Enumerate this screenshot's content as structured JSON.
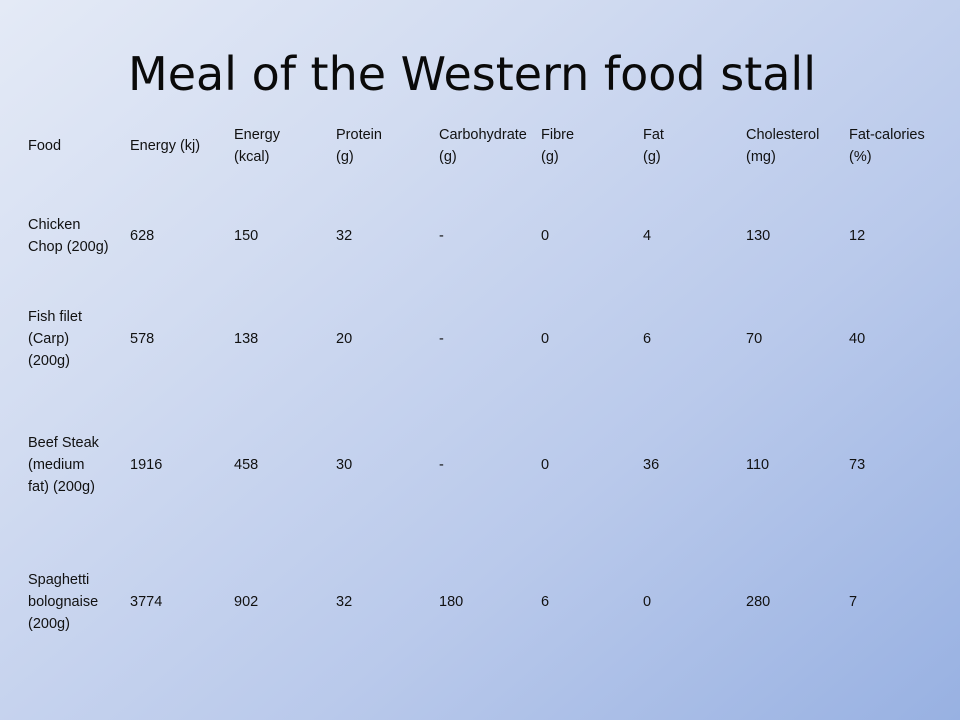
{
  "slide": {
    "title": "Meal of the Western food stall"
  },
  "table": {
    "headers": [
      "Food",
      "Energy (kj)",
      "Energy\n(kcal)",
      "Protein\n(g)",
      "Carbohydrate\n(g)",
      "Fibre\n(g)",
      "Fat\n(g)",
      "Cholesterol\n(mg)",
      "Fat-calories\n(%)"
    ],
    "rows": [
      {
        "food_lines": [
          "Chicken",
          "Chop (200g)"
        ],
        "values": [
          "628",
          "150",
          "32",
          "-",
          "0",
          "4",
          "130",
          "12"
        ]
      },
      {
        "food_lines": [
          "Fish filet",
          "(Carp)",
          "(200g)"
        ],
        "values": [
          "578",
          "138",
          "20",
          "-",
          "0",
          "6",
          "70",
          "40"
        ]
      },
      {
        "food_lines": [
          "Beef Steak",
          "(medium",
          "fat) (200g)"
        ],
        "values": [
          "1916",
          "458",
          "30",
          "-",
          "0",
          "36",
          "110",
          "73"
        ]
      },
      {
        "food_lines": [
          "Spaghetti",
          "bolognaise",
          "(200g)"
        ],
        "values": [
          "3774",
          "902",
          "32",
          "180",
          "6",
          "0",
          "280",
          "7"
        ]
      }
    ]
  }
}
